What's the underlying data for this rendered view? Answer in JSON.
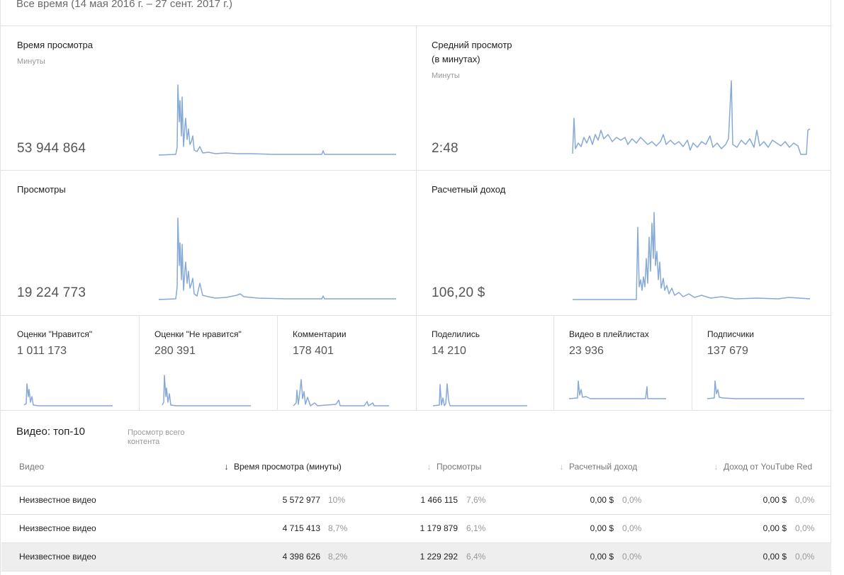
{
  "period": "Все время (14 мая 2016 г. – 27 сент. 2017 г.)",
  "metrics": {
    "watch_time": {
      "title": "Время просмотра",
      "unit": "Минуты",
      "value": "53 944 864"
    },
    "avg_view": {
      "title_line1": "Средний просмотр",
      "title_line2": "(в минутах)",
      "unit": "Минуты",
      "value": "2:48"
    },
    "views": {
      "title": "Просмотры",
      "value": "19 224 773"
    },
    "revenue": {
      "title": "Расчетный доход",
      "value": "106,20 $"
    }
  },
  "small_metrics": [
    {
      "title": "Оценки \"Нравится\"",
      "value": "1 011 173"
    },
    {
      "title": "Оценки \"Не нравится\"",
      "value": "280 391"
    },
    {
      "title": "Комментарии",
      "value": "178 401"
    },
    {
      "title": "Поделились",
      "value": "14 210"
    },
    {
      "title": "Видео в плейлистах",
      "value": "23 936"
    },
    {
      "title": "Подписчики",
      "value": "137 679"
    }
  ],
  "top_videos": {
    "title": "Видео: топ-10",
    "link": "Просмотр всего контента",
    "columns": {
      "video": "Видео",
      "watch_time": "Время просмотра (минуты)",
      "views": "Просмотры",
      "revenue": "Расчетный доход",
      "red_revenue": "Доход от YouTube Red"
    },
    "sort_icon": "arrow-down-icon",
    "rows": [
      {
        "video": "Неизвестное видео",
        "watch_time": "5 572 977",
        "watch_pct": "10%",
        "views": "1 466 115",
        "views_pct": "7,6%",
        "revenue": "0,00 $",
        "revenue_pct": "0,0%",
        "red": "0,00 $",
        "red_pct": "0,0%"
      },
      {
        "video": "Неизвестное видео",
        "watch_time": "4 715 413",
        "watch_pct": "8,7%",
        "views": "1 179 879",
        "views_pct": "6,1%",
        "revenue": "0,00 $",
        "revenue_pct": "0,0%",
        "red": "0,00 $",
        "red_pct": "0,0%"
      },
      {
        "video": "Неизвестное видео",
        "watch_time": "4 398 626",
        "watch_pct": "8,2%",
        "views": "1 229 292",
        "views_pct": "6,4%",
        "revenue": "0,00 $",
        "revenue_pct": "0,0%",
        "red": "0,00 $",
        "red_pct": "0,0%"
      }
    ]
  },
  "colors": {
    "sparkline": "#86a9d6",
    "divider": "#e2e2e2",
    "highlight_row": "#eeeeee"
  }
}
